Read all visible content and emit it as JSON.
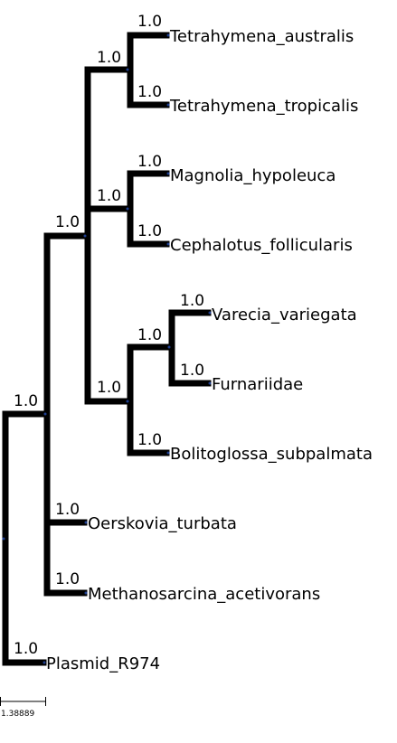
{
  "tree": {
    "leaves": [
      {
        "id": "tetrahymena_australis",
        "label": "Tetrahymena_australis"
      },
      {
        "id": "tetrahymena_tropicalis",
        "label": "Tetrahymena_tropicalis"
      },
      {
        "id": "magnolia_hypoleuca",
        "label": "Magnolia_hypoleuca"
      },
      {
        "id": "cephalotus_follicularis",
        "label": "Cephalotus_follicularis"
      },
      {
        "id": "varecia_variegata",
        "label": "Varecia_variegata"
      },
      {
        "id": "furnariidae",
        "label": "Furnariidae"
      },
      {
        "id": "bolitoglossa_subpalmata",
        "label": "Bolitoglossa_subpalmata"
      },
      {
        "id": "oerskovia_turbata",
        "label": "Oerskovia_turbata"
      },
      {
        "id": "methanosarcina_acetivorans",
        "label": "Methanosarcina_acetivorans"
      },
      {
        "id": "plasmid_r974",
        "label": "Plasmid_R974"
      }
    ],
    "support_values": {
      "tetrahymena_australis": "1.0",
      "tetrahymena_tropicalis": "1.0",
      "tetrahymena_clade": "1.0",
      "magnolia_hypoleuca": "1.0",
      "cephalotus_follicularis": "1.0",
      "magnolia_cephalotus_clade": "1.0",
      "varecia_variegata": "1.0",
      "furnariidae": "1.0",
      "varecia_furnariidae_clade": "1.0",
      "bolitoglossa_subpalmata": "1.0",
      "bolitoglossa_clade": "1.0",
      "inner_clade": "1.0",
      "oerskovia_turbata": "1.0",
      "methanosarcina_acetivorans": "1.0",
      "major_clade": "1.0",
      "plasmid_r974": "1.0"
    },
    "scale_bar": {
      "label": "1.38889"
    }
  }
}
